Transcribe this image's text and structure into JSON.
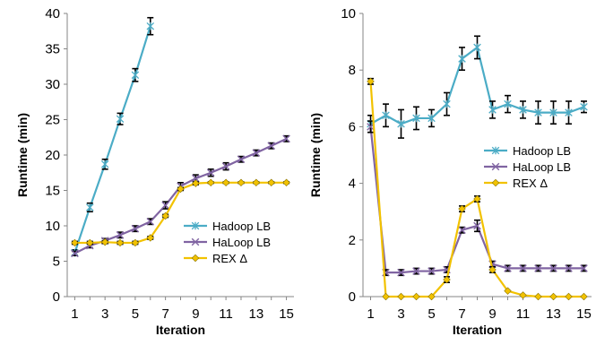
{
  "chart_data": [
    {
      "type": "line",
      "xlabel": "Iteration",
      "ylabel": "Runtime (min)",
      "xlim": [
        0.5,
        15.5
      ],
      "ylim": [
        0,
        40
      ],
      "x_ticks": [
        1,
        3,
        5,
        7,
        9,
        11,
        13,
        15
      ],
      "y_ticks": [
        0,
        5,
        10,
        15,
        20,
        25,
        30,
        35,
        40
      ],
      "legend_position": "bottom-right",
      "series": [
        {
          "name": "Hadoop LB",
          "color": "#4BACC6",
          "marker": "asterisk",
          "x": [
            1,
            2,
            3,
            4,
            5,
            6
          ],
          "y": [
            6.2,
            12.6,
            18.7,
            25.1,
            31.3,
            38.2
          ],
          "err": [
            0.4,
            0.6,
            0.7,
            0.8,
            0.9,
            1.2
          ]
        },
        {
          "name": "HaLoop LB",
          "color": "#8064A2",
          "marker": "x",
          "x": [
            1,
            2,
            3,
            4,
            5,
            6,
            7,
            8,
            9,
            10,
            11,
            12,
            13,
            14,
            15
          ],
          "y": [
            6.1,
            7.2,
            7.9,
            8.7,
            9.6,
            10.6,
            12.9,
            15.6,
            16.7,
            17.5,
            18.4,
            19.4,
            20.3,
            21.3,
            22.3
          ],
          "err": [
            0.3,
            0.3,
            0.3,
            0.4,
            0.4,
            0.4,
            0.5,
            0.5,
            0.5,
            0.5,
            0.5,
            0.4,
            0.4,
            0.4,
            0.4
          ]
        },
        {
          "name": "REX Δ",
          "color": "#F2C200",
          "marker": "diamond",
          "x": [
            1,
            2,
            3,
            4,
            5,
            6,
            7,
            8,
            9,
            10,
            11,
            12,
            13,
            14,
            15
          ],
          "y": [
            7.6,
            7.6,
            7.7,
            7.6,
            7.6,
            8.3,
            11.4,
            15.2,
            16.0,
            16.1,
            16.1,
            16.1,
            16.1,
            16.1,
            16.1
          ],
          "err": [
            0.2,
            0.2,
            0.2,
            0.2,
            0.2,
            0.2,
            0.2,
            0.2,
            0.2,
            0.1,
            0.1,
            0.1,
            0.1,
            0.1,
            0.1
          ]
        }
      ]
    },
    {
      "type": "line",
      "xlabel": "Iteration",
      "ylabel": "Runtime (min)",
      "xlim": [
        0.5,
        15.5
      ],
      "ylim": [
        0,
        10
      ],
      "x_ticks": [
        1,
        3,
        5,
        7,
        9,
        11,
        13,
        15
      ],
      "y_ticks": [
        0,
        2,
        4,
        6,
        8,
        10
      ],
      "legend_position": "middle-right",
      "series": [
        {
          "name": "Hadoop LB",
          "color": "#4BACC6",
          "marker": "asterisk",
          "x": [
            1,
            2,
            3,
            4,
            5,
            6,
            7,
            8,
            9,
            10,
            11,
            12,
            13,
            14,
            15
          ],
          "y": [
            6.1,
            6.4,
            6.1,
            6.3,
            6.3,
            6.8,
            8.4,
            8.8,
            6.6,
            6.8,
            6.6,
            6.5,
            6.5,
            6.5,
            6.7
          ],
          "err": [
            0.3,
            0.4,
            0.5,
            0.4,
            0.3,
            0.4,
            0.4,
            0.4,
            0.3,
            0.3,
            0.3,
            0.4,
            0.4,
            0.4,
            0.2
          ]
        },
        {
          "name": "HaLoop LB",
          "color": "#8064A2",
          "marker": "x",
          "x": [
            1,
            2,
            3,
            4,
            5,
            6,
            7,
            8,
            9,
            10,
            11,
            12,
            13,
            14,
            15
          ],
          "y": [
            6.0,
            0.85,
            0.85,
            0.9,
            0.9,
            0.95,
            2.35,
            2.5,
            1.15,
            1.0,
            1.0,
            1.0,
            1.0,
            1.0,
            1.0
          ],
          "err": [
            0.2,
            0.1,
            0.1,
            0.1,
            0.1,
            0.1,
            0.1,
            0.2,
            0.1,
            0.1,
            0.1,
            0.1,
            0.1,
            0.1,
            0.1
          ]
        },
        {
          "name": "REX Δ",
          "color": "#F2C200",
          "marker": "diamond",
          "x": [
            1,
            2,
            3,
            4,
            5,
            6,
            7,
            8,
            9,
            10,
            11,
            12,
            13,
            14,
            15
          ],
          "y": [
            7.6,
            0.0,
            0.0,
            0.0,
            0.0,
            0.6,
            3.1,
            3.45,
            0.95,
            0.2,
            0.05,
            0.0,
            0.0,
            0.0,
            0.0
          ],
          "err": [
            0.1,
            0.0,
            0.0,
            0.0,
            0.0,
            0.1,
            0.1,
            0.1,
            0.1,
            0.0,
            0.0,
            0.0,
            0.0,
            0.0,
            0.0
          ]
        }
      ]
    }
  ]
}
